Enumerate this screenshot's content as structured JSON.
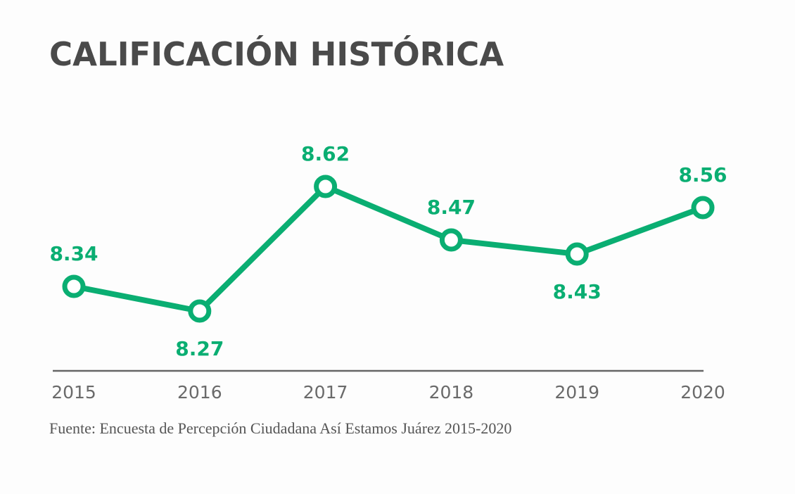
{
  "chart_data": {
    "type": "line",
    "title": "CALIFICACIÓN HISTÓRICA",
    "xlabel": "",
    "ylabel": "",
    "categories": [
      "2015",
      "2016",
      "2017",
      "2018",
      "2019",
      "2020"
    ],
    "series": [
      {
        "name": "Calificación",
        "values": [
          8.34,
          8.27,
          8.62,
          8.47,
          8.43,
          8.56
        ],
        "labels": [
          "8.34",
          "8.27",
          "8.62",
          "8.47",
          "8.43",
          "8.56"
        ],
        "color": "#0aae72"
      }
    ],
    "grid": false,
    "legend": "none",
    "source": "Fuente: Encuesta de Percepción Ciudadana Así Estamos Juárez 2015-2020"
  },
  "colors": {
    "accent": "#0aae72",
    "axis": "#777777",
    "title": "#4a4a4a"
  }
}
